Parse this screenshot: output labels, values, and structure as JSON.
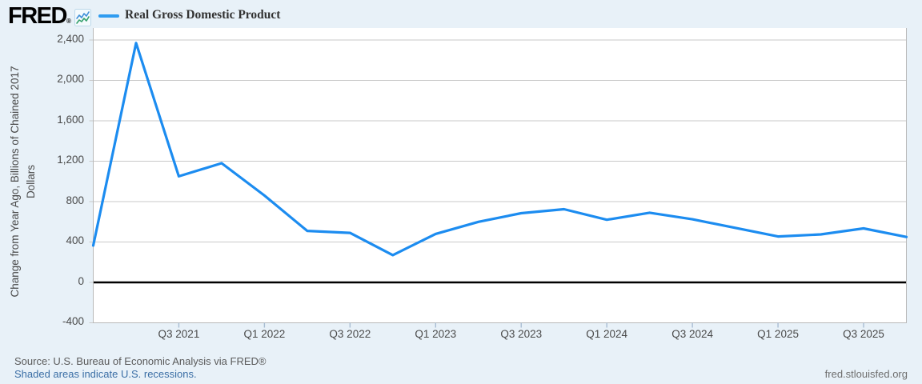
{
  "header": {
    "logo": "FRED",
    "registered_mark": "®",
    "legend_label": "Real Gross Domestic Product"
  },
  "footer": {
    "source": "Source: U.S. Bureau of Economic Analysis via FRED®",
    "recession_note": "Shaded areas indicate U.S. recessions.",
    "site": "fred.stlouisfed.org"
  },
  "chart_data": {
    "type": "line",
    "title": "Real Gross Domestic Product",
    "ylabel": "Change from Year Ago, Billions of Chained 2017 Dollars",
    "ylabel_lines": [
      "Change from Year Ago, Billions of Chained 2017",
      "Dollars"
    ],
    "x": [
      "2021 Q1",
      "2021 Q2",
      "2021 Q3",
      "2021 Q4",
      "2022 Q1",
      "2022 Q2",
      "2022 Q3",
      "2022 Q4",
      "2023 Q1",
      "2023 Q2",
      "2023 Q3",
      "2023 Q4",
      "2024 Q1",
      "2024 Q2",
      "2024 Q3",
      "2024 Q4",
      "2025 Q1",
      "2025 Q2",
      "2025 Q3",
      "2025 Q4"
    ],
    "values": [
      365,
      2370,
      1050,
      1180,
      860,
      510,
      490,
      270,
      480,
      600,
      685,
      725,
      620,
      690,
      625,
      540,
      455,
      475,
      535,
      450
    ],
    "ylim": [
      -400,
      2400
    ],
    "ytick_labels": [
      "2,400",
      "2,000",
      "1,600",
      "1,200",
      "800",
      "400",
      "0",
      "-400"
    ],
    "xtick_labels": [
      "Q3 2021",
      "Q1 2022",
      "Q3 2022",
      "Q1 2023",
      "Q3 2023",
      "Q1 2024",
      "Q3 2024",
      "Q1 2025",
      "Q3 2025"
    ],
    "xtick_quarters": [
      2,
      4,
      6,
      8,
      10,
      12,
      14,
      16,
      18
    ],
    "grid": "horizontal",
    "zero_line": true,
    "legend_position": "top-left",
    "colors": {
      "line": "#1c8cf0",
      "grid": "#c9c9c9",
      "zero_line": "#000000",
      "x_tick": "#a9bdd3",
      "plot_border": "#b9b9b9",
      "plot_bg": "#ffffff",
      "page_bg": "#e8f1f8"
    }
  }
}
